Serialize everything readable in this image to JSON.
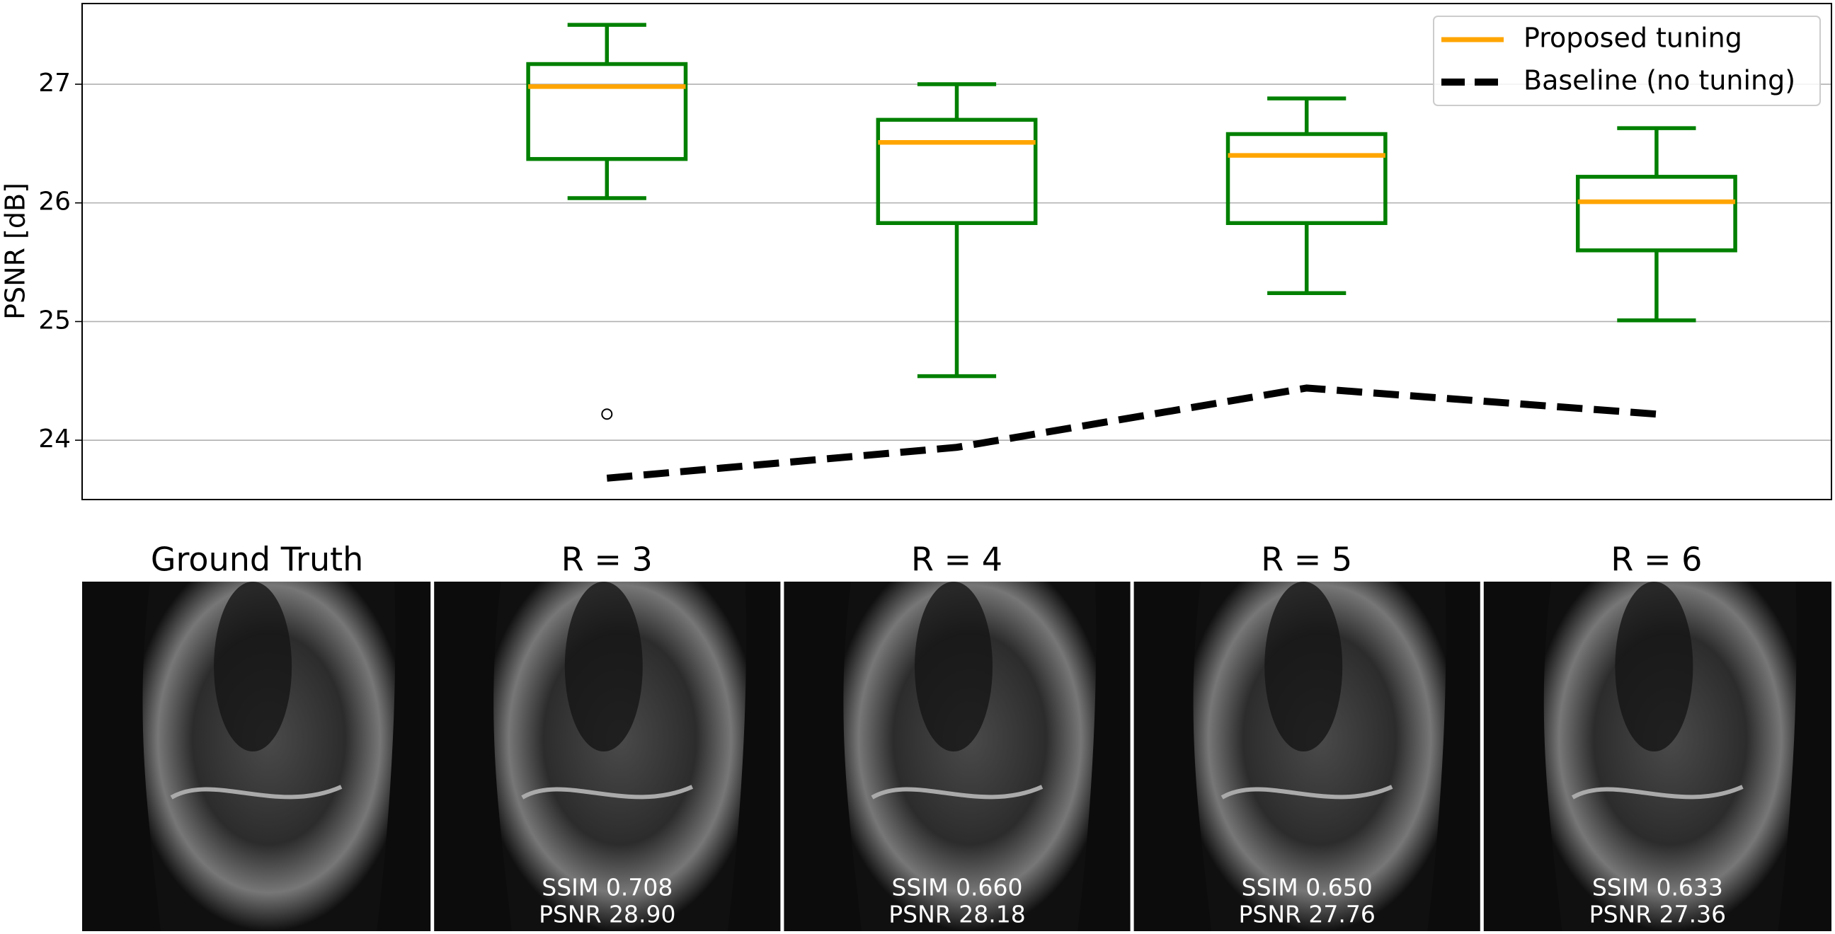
{
  "chart_data": {
    "type": "box",
    "ylabel": "PSNR [dB]",
    "categories": [
      null,
      null,
      null,
      null,
      null
    ],
    "ylim": [
      23.5,
      27.68
    ],
    "yticks": [
      24,
      25,
      26,
      27
    ],
    "grid": true,
    "legend": "upper right",
    "series": [
      {
        "name": "Proposed tuning",
        "kind": "box",
        "color": "#ffa500",
        "box_color": "#008000",
        "boxes": [
          null,
          {
            "whislo": 26.04,
            "q1": 26.37,
            "med": 26.98,
            "q3": 27.17,
            "whishi": 27.5,
            "fliers": [
              24.22
            ]
          },
          {
            "whislo": 24.54,
            "q1": 25.83,
            "med": 26.51,
            "q3": 26.7,
            "whishi": 27.0,
            "fliers": []
          },
          {
            "whislo": 25.24,
            "q1": 25.83,
            "med": 26.4,
            "q3": 26.58,
            "whishi": 26.88,
            "fliers": []
          },
          {
            "whislo": 25.01,
            "q1": 25.6,
            "med": 26.01,
            "q3": 26.22,
            "whishi": 26.63,
            "fliers": []
          }
        ]
      },
      {
        "name": "Baseline (no tuning)",
        "kind": "line",
        "color": "#000000",
        "dashed": true,
        "values": [
          null,
          23.68,
          23.94,
          24.44,
          24.22
        ]
      }
    ]
  },
  "panels": [
    {
      "title": "Ground Truth"
    },
    {
      "title": "R = 3",
      "ssim": "SSIM 0.708",
      "psnr": "PSNR 28.90"
    },
    {
      "title": "R = 4",
      "ssim": "SSIM 0.660",
      "psnr": "PSNR 28.18"
    },
    {
      "title": "R = 5",
      "ssim": "SSIM 0.650",
      "psnr": "PSNR 27.76"
    },
    {
      "title": "R = 6",
      "ssim": "SSIM 0.633",
      "psnr": "PSNR 27.36"
    }
  ]
}
